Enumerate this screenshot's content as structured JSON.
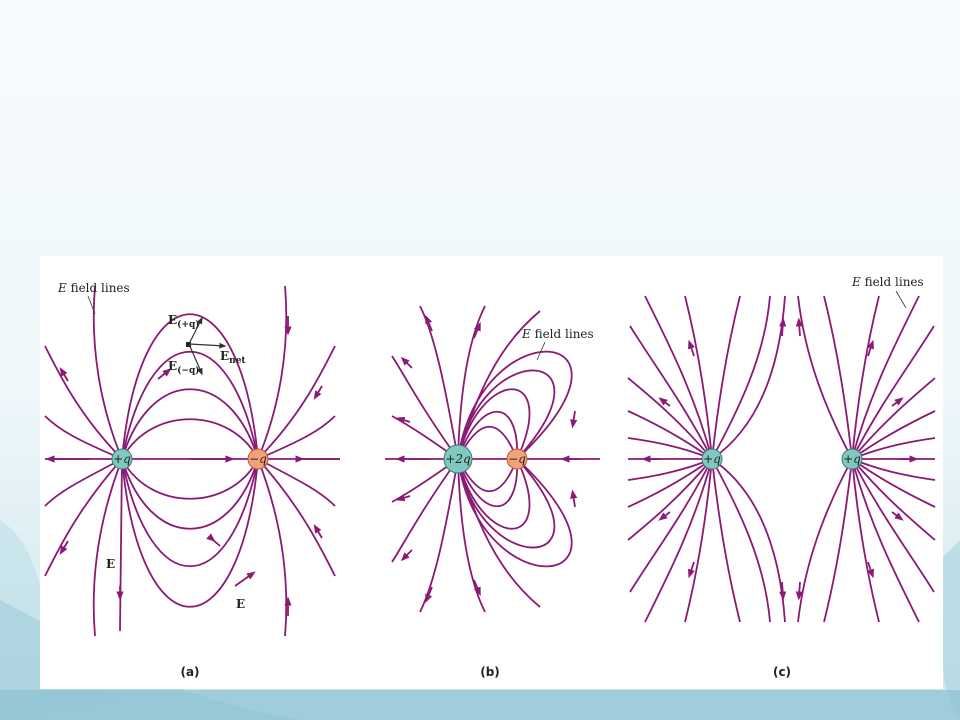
{
  "colors": {
    "field_line": "#8b1a74",
    "positive_charge": "#7fc9c0",
    "negative_charge": "#f4a07a"
  },
  "panel_a": {
    "caption": "(a)",
    "field_lines_label_italic": "E",
    "field_lines_label_rest": " field lines",
    "pos_charge": "+q",
    "neg_charge": "−q",
    "vec_e_pos": "E",
    "vec_e_pos_sub": "(+q)",
    "vec_e_neg": "E",
    "vec_e_neg_sub": "(−q)",
    "vec_e_net": "E",
    "vec_e_net_sub": "net",
    "vec_e_left": "E",
    "vec_e_right": "E"
  },
  "panel_b": {
    "caption": "(b)",
    "field_lines_label_italic": "E",
    "field_lines_label_rest": " field lines",
    "pos_charge": "+2q",
    "neg_charge": "−q"
  },
  "panel_c": {
    "caption": "(c)",
    "field_lines_label_italic": "E",
    "field_lines_label_rest": " field lines",
    "charge_left": "+q",
    "charge_right": "+q"
  }
}
